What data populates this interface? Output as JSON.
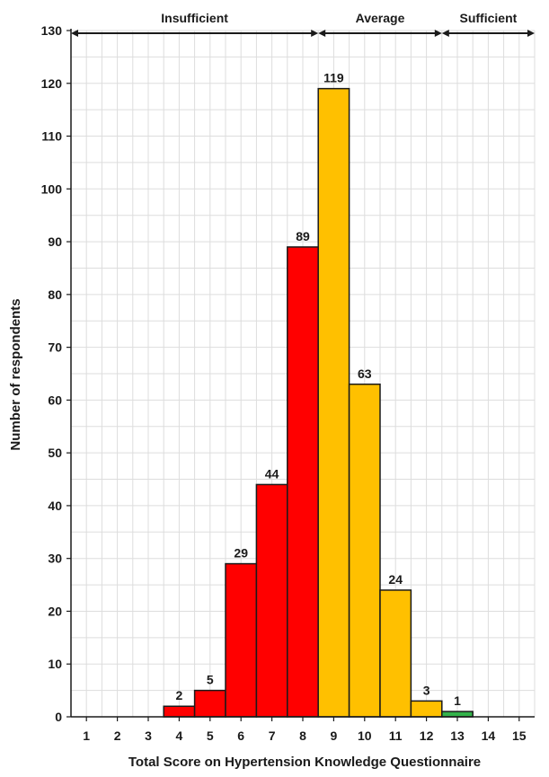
{
  "chart_data": {
    "type": "bar",
    "title": "",
    "xlabel": "Total Score on Hypertension Knowledge Questionnaire",
    "ylabel": "Number of respondents",
    "ylim": [
      0,
      130
    ],
    "yticks": [
      0,
      10,
      20,
      30,
      40,
      50,
      60,
      70,
      80,
      90,
      100,
      110,
      120,
      130
    ],
    "categories": [
      "1",
      "2",
      "3",
      "4",
      "5",
      "6",
      "7",
      "8",
      "9",
      "10",
      "11",
      "12",
      "13",
      "14",
      "15"
    ],
    "values": [
      0,
      0,
      0,
      2,
      5,
      29,
      44,
      89,
      119,
      63,
      24,
      3,
      1,
      0,
      0
    ],
    "value_labels": [
      "",
      "",
      "",
      "2",
      "5",
      "29",
      "44",
      "89",
      "119",
      "63",
      "24",
      "3",
      "1",
      "",
      ""
    ],
    "grid": true,
    "colors": {
      "insufficient": "#ff0000",
      "average": "#ffc000",
      "sufficient": "#33b24a"
    },
    "ranges": [
      {
        "label": "Insufficient",
        "from": 0.5,
        "to": 8.5,
        "color_key": "insufficient"
      },
      {
        "label": "Average",
        "from": 8.5,
        "to": 12.5,
        "color_key": "average"
      },
      {
        "label": "Sufficient",
        "from": 12.5,
        "to": 15.5,
        "color_key": "sufficient"
      }
    ]
  }
}
